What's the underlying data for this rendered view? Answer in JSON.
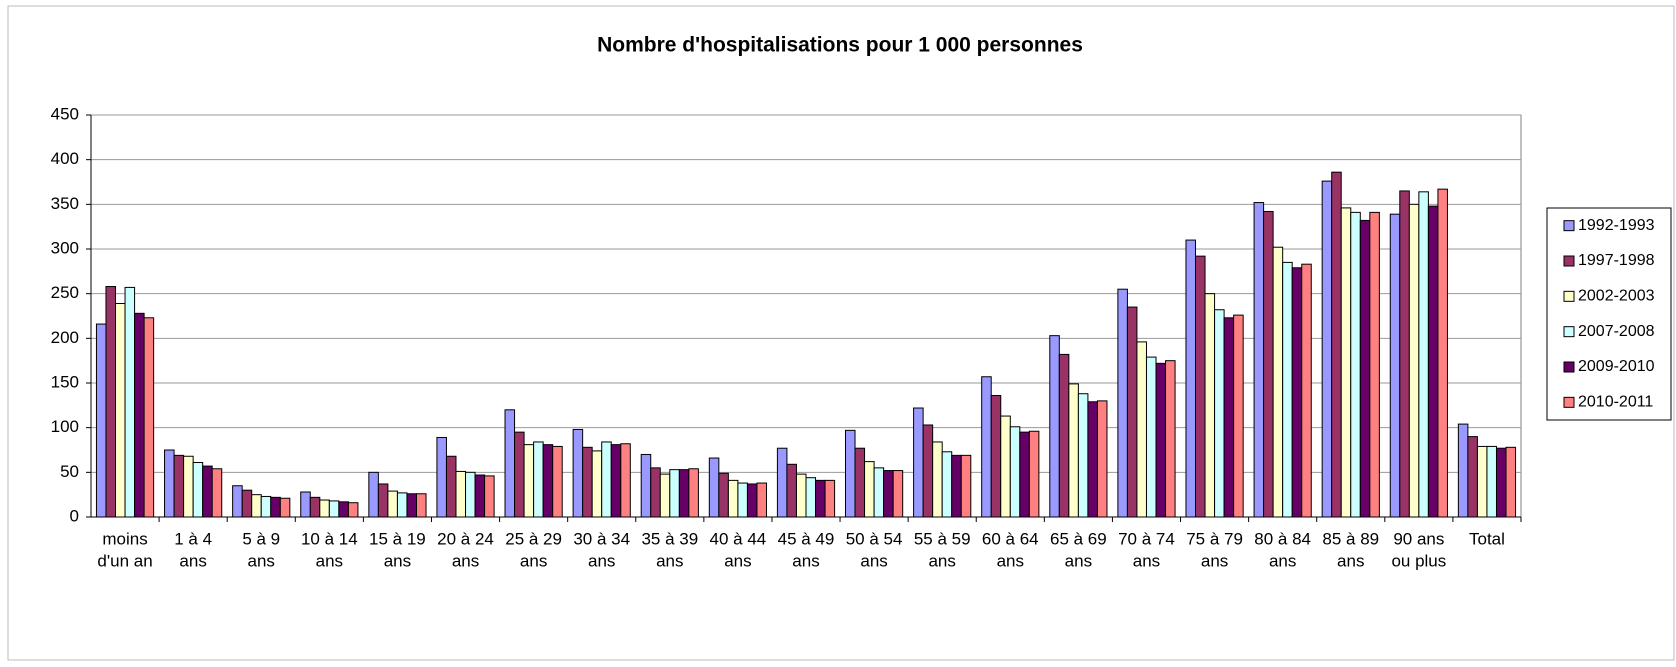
{
  "chart_data": {
    "type": "bar",
    "title": "Nombre d'hospitalisations pour 1 000 personnes",
    "categories": [
      [
        "moins",
        "d'un an"
      ],
      [
        "1 à 4",
        "ans"
      ],
      [
        "5 à 9",
        "ans"
      ],
      [
        "10 à 14",
        "ans"
      ],
      [
        "15 à 19",
        "ans"
      ],
      [
        "20 à 24",
        "ans"
      ],
      [
        "25 à 29",
        "ans"
      ],
      [
        "30 à 34",
        "ans"
      ],
      [
        "35 à 39",
        "ans"
      ],
      [
        "40 à 44",
        "ans"
      ],
      [
        "45 à 49",
        "ans"
      ],
      [
        "50 à 54",
        "ans"
      ],
      [
        "55 à 59",
        "ans"
      ],
      [
        "60 à 64",
        "ans"
      ],
      [
        "65 à 69",
        "ans"
      ],
      [
        "70 à 74",
        "ans"
      ],
      [
        "75 à 79",
        "ans"
      ],
      [
        "80 à 84",
        "ans"
      ],
      [
        "85 à 89",
        "ans"
      ],
      [
        "90 ans",
        "ou plus"
      ],
      [
        "Total"
      ]
    ],
    "series": [
      {
        "name": "1992-1993",
        "color": "#9999FF",
        "values": [
          216,
          75,
          35,
          28,
          50,
          89,
          120,
          98,
          70,
          66,
          77,
          97,
          122,
          157,
          203,
          255,
          310,
          352,
          376,
          339,
          104
        ]
      },
      {
        "name": "1997-1998",
        "color": "#993366",
        "values": [
          258,
          69,
          30,
          22,
          37,
          68,
          95,
          78,
          55,
          49,
          59,
          77,
          103,
          136,
          182,
          235,
          292,
          342,
          386,
          365,
          90
        ]
      },
      {
        "name": "2002-2003",
        "color": "#FFFFCC",
        "values": [
          239,
          68,
          25,
          19,
          29,
          51,
          81,
          74,
          48,
          41,
          48,
          62,
          84,
          113,
          149,
          196,
          250,
          302,
          346,
          350,
          79
        ]
      },
      {
        "name": "2007-2008",
        "color": "#CCFFFF",
        "values": [
          257,
          61,
          23,
          18,
          27,
          50,
          84,
          84,
          53,
          38,
          44,
          55,
          73,
          101,
          138,
          179,
          232,
          285,
          341,
          364,
          79
        ]
      },
      {
        "name": "2009-2010",
        "color": "#660066",
        "values": [
          228,
          57,
          22,
          17,
          26,
          47,
          81,
          81,
          53,
          37,
          41,
          52,
          69,
          95,
          129,
          172,
          223,
          279,
          332,
          348,
          77
        ]
      },
      {
        "name": "2010-2011",
        "color": "#FF8080",
        "values": [
          223,
          54,
          21,
          16,
          26,
          46,
          79,
          82,
          54,
          38,
          41,
          52,
          69,
          96,
          130,
          175,
          226,
          283,
          341,
          367,
          78
        ]
      }
    ],
    "ylim": [
      0,
      450
    ],
    "yticks": [
      0,
      50,
      100,
      150,
      200,
      250,
      300,
      350,
      400,
      450
    ],
    "grid": true,
    "legend": "right"
  }
}
